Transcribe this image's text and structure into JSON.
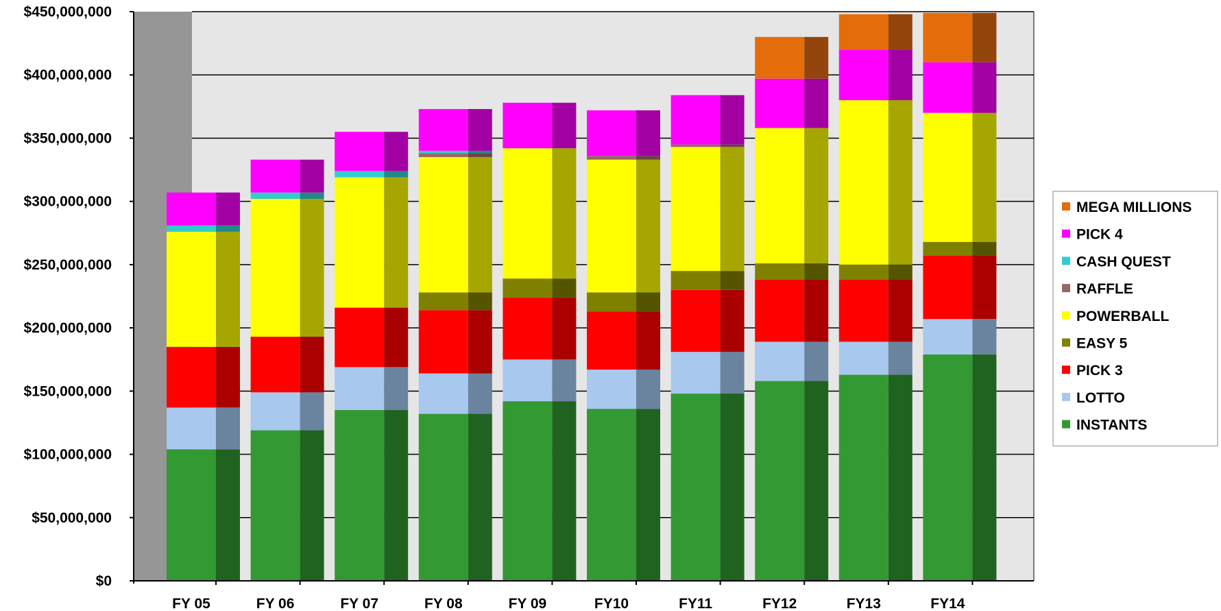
{
  "chart_data": {
    "type": "bar",
    "stacked": true,
    "style": "3d",
    "categories": [
      "FY 05",
      "FY 06",
      "FY 07",
      "FY 08",
      "FY 09",
      "FY10",
      "FY11",
      "FY12",
      "FY13",
      "FY14"
    ],
    "ylim": [
      0,
      450000000
    ],
    "yticks": [
      {
        "value": 0,
        "label": "$0"
      },
      {
        "value": 50000000,
        "label": "$50,000,000"
      },
      {
        "value": 100000000,
        "label": "$100,000,000"
      },
      {
        "value": 150000000,
        "label": "$150,000,000"
      },
      {
        "value": 200000000,
        "label": "$200,000,000"
      },
      {
        "value": 250000000,
        "label": "$250,000,000"
      },
      {
        "value": 300000000,
        "label": "$300,000,000"
      },
      {
        "value": 350000000,
        "label": "$350,000,000"
      },
      {
        "value": 400000000,
        "label": "$400,000,000"
      },
      {
        "value": 450000000,
        "label": "$450,000,000"
      }
    ],
    "grid": true,
    "legend_position": "right",
    "series": [
      {
        "name": "INSTANTS",
        "color": "#339933",
        "side_color": "#206320",
        "values": [
          104000000,
          119000000,
          135000000,
          132000000,
          142000000,
          136000000,
          148000000,
          158000000,
          163000000,
          179000000
        ]
      },
      {
        "name": "LOTTO",
        "color": "#a8c8ee",
        "side_color": "#6a839e",
        "values": [
          33000000,
          30000000,
          34000000,
          32000000,
          33000000,
          31000000,
          33000000,
          31000000,
          26000000,
          28000000
        ]
      },
      {
        "name": "PICK 3",
        "color": "#ff0000",
        "side_color": "#aa0000",
        "values": [
          48000000,
          44000000,
          47000000,
          50000000,
          49000000,
          46000000,
          49000000,
          49000000,
          49000000,
          50000000
        ]
      },
      {
        "name": "EASY 5",
        "color": "#808000",
        "side_color": "#555500",
        "values": [
          0,
          0,
          0,
          14000000,
          15000000,
          15000000,
          15000000,
          13000000,
          12000000,
          11000000
        ]
      },
      {
        "name": "POWERBALL",
        "color": "#ffff00",
        "side_color": "#a6a600",
        "values": [
          91000000,
          109000000,
          103000000,
          107000000,
          103000000,
          105000000,
          98000000,
          107000000,
          130000000,
          102000000
        ]
      },
      {
        "name": "RAFFLE",
        "color": "#996666",
        "side_color": "#6a4444",
        "values": [
          0,
          0,
          0,
          3000000,
          0,
          3000000,
          2000000,
          0,
          0,
          0
        ]
      },
      {
        "name": "CASH QUEST",
        "color": "#33cccc",
        "side_color": "#228888",
        "values": [
          5000000,
          5000000,
          5000000,
          2000000,
          0,
          0,
          0,
          0,
          0,
          0
        ]
      },
      {
        "name": "PICK 4",
        "color": "#ff00ff",
        "side_color": "#a300a3",
        "values": [
          26000000,
          26000000,
          31000000,
          33000000,
          36000000,
          36000000,
          39000000,
          39000000,
          40000000,
          40000000
        ]
      },
      {
        "name": "MEGA MILLIONS",
        "color": "#e46c0a",
        "side_color": "#93450b",
        "values": [
          0,
          0,
          0,
          0,
          0,
          0,
          0,
          33000000,
          28000000,
          39000000
        ]
      }
    ]
  }
}
